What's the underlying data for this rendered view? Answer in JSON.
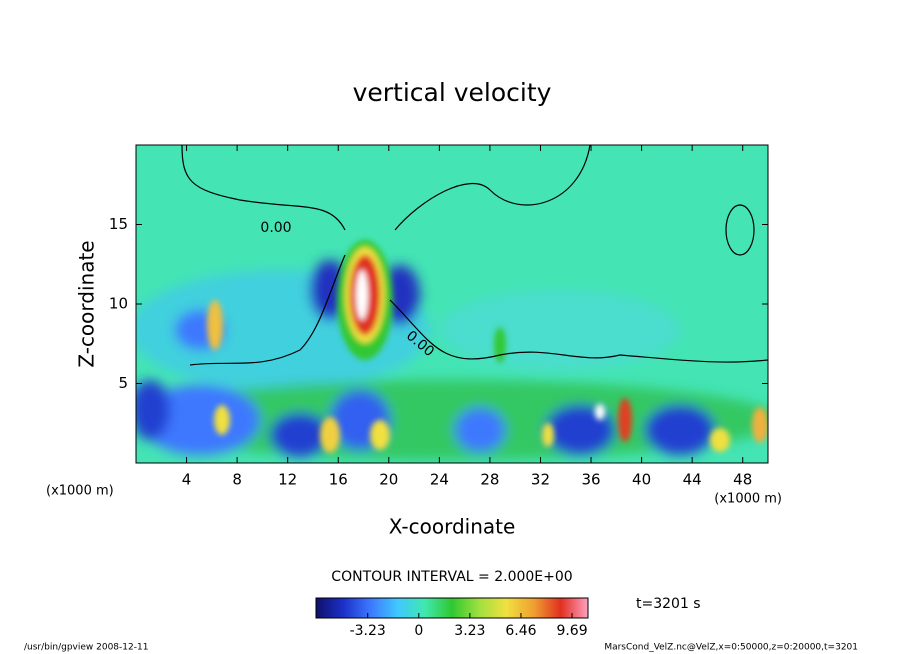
{
  "chart_data": {
    "type": "contour",
    "title": "vertical velocity",
    "xlabel": "X-coordinate",
    "ylabel": "Z-coordinate",
    "xunit": "(x1000 m)",
    "yunit": "(x1000 m)",
    "xlim": [
      0,
      50
    ],
    "ylim": [
      0,
      20
    ],
    "xticks": [
      4,
      8,
      12,
      16,
      20,
      24,
      28,
      32,
      36,
      40,
      44,
      48
    ],
    "yticks": [
      5,
      10,
      15
    ],
    "contour_labels": [
      "0.00",
      "0.00"
    ],
    "contour_interval": "CONTOUR INTERVAL = 2.000E+00",
    "colorbar": {
      "lim": [
        -6.5,
        10.7
      ],
      "ticks": [
        -3.23,
        0,
        3.23,
        6.46,
        9.69
      ]
    },
    "time_label": "t=3201 s",
    "footer_left": "/usr/bin/gpview   2008-12-11",
    "footer_right": "MarsCond_VelZ.nc@VelZ,x=0:50000,z=0:20000,t=3201"
  }
}
